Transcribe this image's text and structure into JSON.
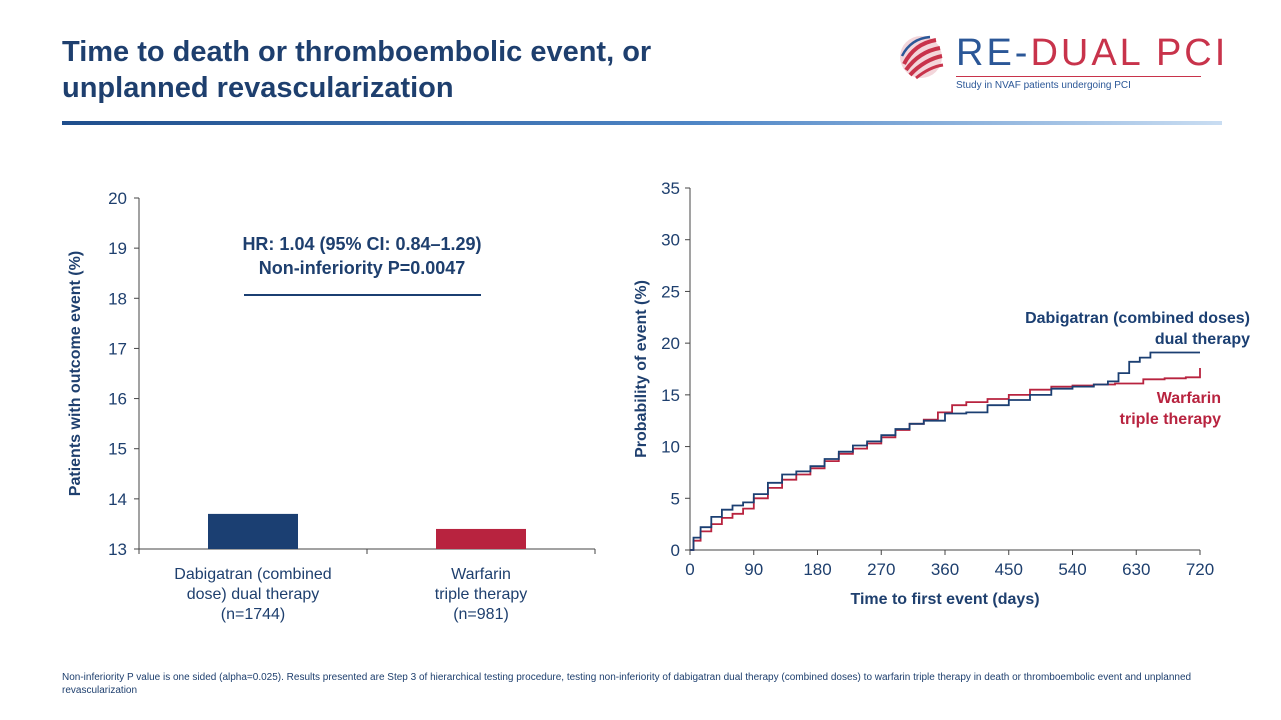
{
  "header": {
    "title_line1": "Time to death or thromboembolic event, or",
    "title_line2": "unplanned revascularization"
  },
  "logo": {
    "prefix": "RE-",
    "name": "DUAL PCI",
    "tagline": "Study in NVAF patients undergoing PCI"
  },
  "colors": {
    "dabigatran": "#1b3f72",
    "warfarin": "#b8233f",
    "title": "#1e3f6e"
  },
  "chart_data": [
    {
      "type": "bar",
      "ylabel": "Patients with outcome event (%)",
      "ylim": [
        13,
        20
      ],
      "yticks": [
        13,
        14,
        15,
        16,
        17,
        18,
        19,
        20
      ],
      "categories": [
        [
          "Dabigatran (combined",
          "dose) dual therapy",
          "(n=1744)"
        ],
        [
          "Warfarin",
          "triple therapy",
          "(n=981)"
        ]
      ],
      "values": [
        13.7,
        13.4
      ],
      "annotation": [
        "HR: 1.04 (95% CI: 0.84–1.29)",
        "Non-inferiority P=0.0047"
      ]
    },
    {
      "type": "line",
      "xlabel": "Time to first event (days)",
      "ylabel": "Probability of event (%)",
      "xlim": [
        0,
        720
      ],
      "ylim": [
        0,
        35
      ],
      "xticks": [
        0,
        90,
        180,
        270,
        360,
        450,
        540,
        630,
        720
      ],
      "yticks": [
        0,
        5,
        10,
        15,
        20,
        25,
        30,
        35
      ],
      "series": [
        {
          "name": [
            "Dabigatran (combined doses)",
            "dual therapy"
          ],
          "points": [
            [
              0,
              0
            ],
            [
              5,
              1.2
            ],
            [
              15,
              2.2
            ],
            [
              30,
              3.2
            ],
            [
              45,
              3.9
            ],
            [
              60,
              4.3
            ],
            [
              75,
              4.6
            ],
            [
              90,
              5.4
            ],
            [
              110,
              6.5
            ],
            [
              130,
              7.3
            ],
            [
              150,
              7.6
            ],
            [
              170,
              8.1
            ],
            [
              190,
              8.8
            ],
            [
              210,
              9.5
            ],
            [
              230,
              10.1
            ],
            [
              250,
              10.5
            ],
            [
              270,
              11.1
            ],
            [
              290,
              11.7
            ],
            [
              310,
              12.2
            ],
            [
              330,
              12.5
            ],
            [
              360,
              13.2
            ],
            [
              390,
              13.3
            ],
            [
              420,
              14.0
            ],
            [
              450,
              14.5
            ],
            [
              480,
              15.0
            ],
            [
              510,
              15.6
            ],
            [
              540,
              15.8
            ],
            [
              570,
              16.0
            ],
            [
              590,
              16.3
            ],
            [
              605,
              17.1
            ],
            [
              620,
              18.2
            ],
            [
              635,
              18.6
            ],
            [
              650,
              19.1
            ],
            [
              700,
              19.1
            ],
            [
              720,
              19.1
            ]
          ]
        },
        {
          "name": [
            "Warfarin",
            "triple therapy"
          ],
          "points": [
            [
              0,
              0
            ],
            [
              5,
              0.9
            ],
            [
              15,
              1.8
            ],
            [
              30,
              2.5
            ],
            [
              45,
              3.1
            ],
            [
              60,
              3.5
            ],
            [
              75,
              4.0
            ],
            [
              90,
              5.0
            ],
            [
              110,
              6.0
            ],
            [
              130,
              6.8
            ],
            [
              150,
              7.3
            ],
            [
              170,
              7.9
            ],
            [
              190,
              8.6
            ],
            [
              210,
              9.3
            ],
            [
              230,
              9.8
            ],
            [
              250,
              10.3
            ],
            [
              270,
              10.9
            ],
            [
              290,
              11.6
            ],
            [
              310,
              12.2
            ],
            [
              330,
              12.6
            ],
            [
              350,
              13.3
            ],
            [
              370,
              14.0
            ],
            [
              390,
              14.3
            ],
            [
              420,
              14.6
            ],
            [
              450,
              15.0
            ],
            [
              480,
              15.5
            ],
            [
              510,
              15.8
            ],
            [
              540,
              15.9
            ],
            [
              570,
              16.0
            ],
            [
              600,
              16.1
            ],
            [
              640,
              16.5
            ],
            [
              670,
              16.6
            ],
            [
              700,
              16.7
            ],
            [
              718,
              16.7
            ],
            [
              720,
              17.6
            ]
          ]
        }
      ]
    }
  ],
  "footnote": "Non-inferiority P value is one sided (alpha=0.025). Results presented are Step 3 of hierarchical testing procedure, testing non-inferiority of dabigatran dual therapy (combined doses) to warfarin triple therapy in death or thromboembolic event and unplanned revascularization"
}
